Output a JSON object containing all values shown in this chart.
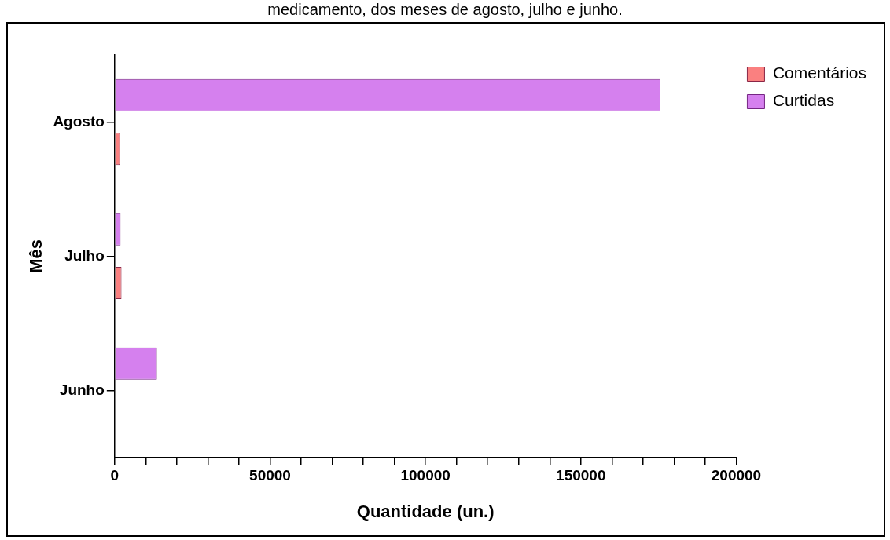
{
  "chart_data": {
    "type": "bar",
    "orientation": "horizontal",
    "title": "medicamento, dos meses de agosto, julho e junho.",
    "xlabel": "Quantidade (un.)",
    "ylabel": "Mês",
    "categories": [
      "Agosto",
      "Julho",
      "Junho"
    ],
    "series": [
      {
        "name": "Curtidas",
        "color": "#d580ee",
        "values": [
          175600,
          1900,
          13600
        ]
      },
      {
        "name": "Comentários",
        "color": "#fa8080",
        "values": [
          1700,
          2200,
          0
        ]
      }
    ],
    "xlim": [
      0,
      200000
    ],
    "xticks": [
      0,
      {
        "value": 10000,
        "label": null
      },
      {
        "value": 20000,
        "label": null
      },
      {
        "value": 30000,
        "label": null
      },
      {
        "value": 40000,
        "label": null
      },
      50000,
      {
        "value": 60000,
        "label": null
      },
      {
        "value": 70000,
        "label": null
      },
      {
        "value": 80000,
        "label": null
      },
      {
        "value": 90000,
        "label": null
      },
      100000,
      {
        "value": 110000,
        "label": null
      },
      {
        "value": 120000,
        "label": null
      },
      {
        "value": 130000,
        "label": null
      },
      {
        "value": 140000,
        "label": null
      },
      150000,
      {
        "value": 160000,
        "label": null
      },
      {
        "value": 170000,
        "label": null
      },
      {
        "value": 180000,
        "label": null
      },
      {
        "value": 190000,
        "label": null
      },
      200000
    ],
    "grid": false,
    "legend": "top right"
  }
}
